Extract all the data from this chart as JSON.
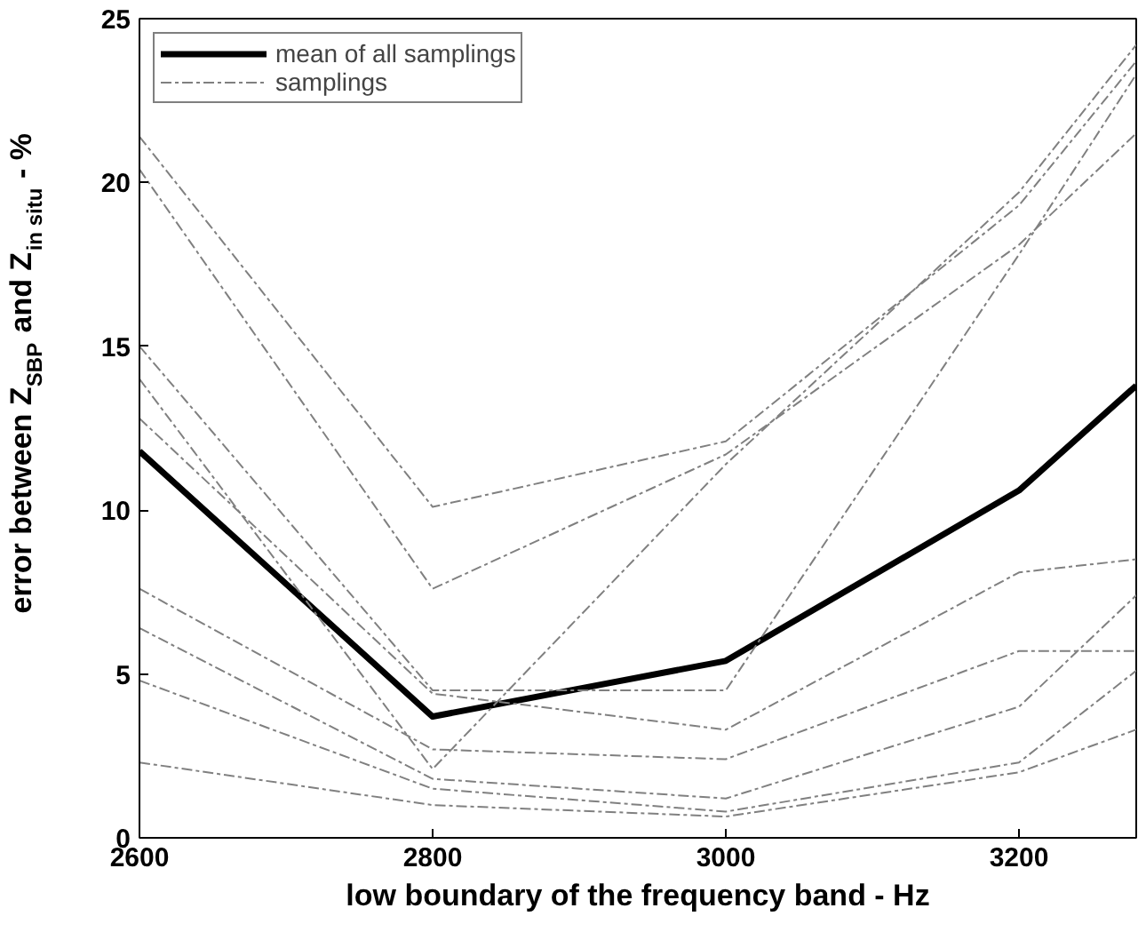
{
  "chart_data": {
    "type": "line",
    "xlabel": "low boundary of the frequency band - Hz",
    "ylabel": "error between Z$_{SBP}$ and Z$_{in situ}$ - %",
    "x": [
      2600,
      2800,
      3000,
      3200,
      3280
    ],
    "xlim": [
      2600,
      3280
    ],
    "xticks": [
      2600,
      2800,
      3000,
      3200
    ],
    "ylim": [
      0,
      25
    ],
    "yticks": [
      0,
      5,
      10,
      15,
      20,
      25
    ],
    "grid": false,
    "legend": "top left",
    "marker": "none",
    "series": [
      {
        "name": "mean of all samplings",
        "color": "#000000",
        "line_style": "solid",
        "values": [
          11.8,
          3.7,
          5.4,
          10.6,
          13.8
        ]
      },
      {
        "name": "samplings",
        "color": "#808080",
        "line_style": "dashed",
        "values": [
          21.4,
          10.1,
          12.1,
          19.3,
          23.7
        ]
      },
      {
        "color": "#808080",
        "line_style": "dashed",
        "values": [
          20.4,
          7.6,
          11.7,
          18.1,
          21.5
        ]
      },
      {
        "color": "#808080",
        "line_style": "dashed",
        "values": [
          15.0,
          4.5,
          4.5,
          17.8,
          23.3
        ]
      },
      {
        "color": "#808080",
        "line_style": "dashed",
        "values": [
          14.0,
          2.1,
          11.4,
          19.7,
          24.2
        ]
      },
      {
        "color": "#808080",
        "line_style": "dashed",
        "values": [
          12.8,
          4.4,
          3.3,
          8.1,
          8.5
        ]
      },
      {
        "color": "#808080",
        "line_style": "dashed",
        "values": [
          7.6,
          2.7,
          2.4,
          5.7,
          5.7
        ]
      },
      {
        "color": "#808080",
        "line_style": "dashed",
        "values": [
          6.4,
          1.8,
          1.2,
          4.0,
          7.4
        ]
      },
      {
        "color": "#808080",
        "line_style": "dashed",
        "values": [
          4.8,
          1.5,
          0.8,
          2.3,
          5.1
        ]
      },
      {
        "color": "#808080",
        "line_style": "dashed",
        "values": [
          2.3,
          1.0,
          0.65,
          2.0,
          3.3
        ]
      }
    ]
  }
}
